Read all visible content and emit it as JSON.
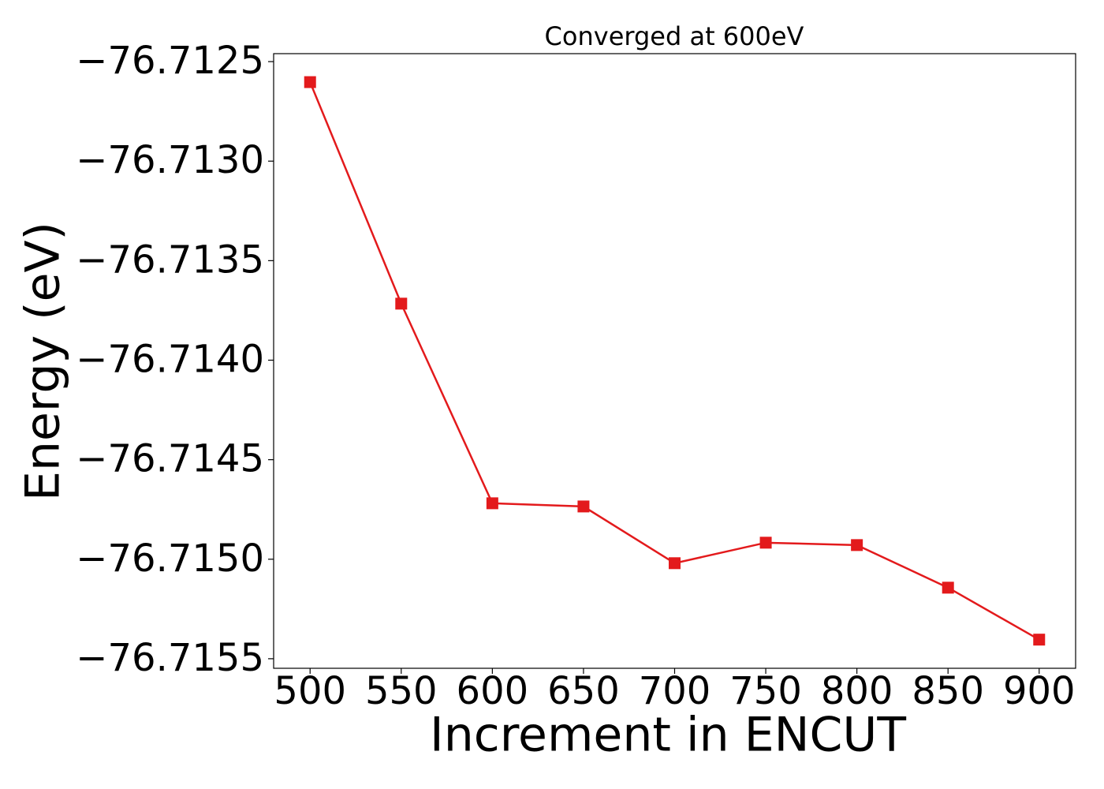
{
  "chart_data": {
    "type": "line",
    "title": "Converged at 600eV",
    "x_label": "Increment in ENCUT",
    "y_label": "Energy (eV)",
    "x": [
      500,
      550,
      600,
      650,
      700,
      750,
      800,
      850,
      900
    ],
    "series": [
      {
        "color": "#e31a1c",
        "values": [
          -76.712603,
          -76.713716,
          -76.714719,
          -76.714735,
          -76.71502,
          -76.714917,
          -76.714929,
          -76.715143,
          -76.715404
        ]
      }
    ],
    "xlim": [
      480,
      920
    ],
    "xticks": [
      500,
      550,
      600,
      650,
      700,
      750,
      800,
      850,
      900
    ],
    "ylim": [
      -76.715548,
      -76.71246
    ],
    "yticks": [
      {
        "value": -76.7125,
        "label": "−76.7125"
      },
      {
        "value": -76.713,
        "label": "−76.7130"
      },
      {
        "value": -76.7135,
        "label": "−76.7135"
      },
      {
        "value": -76.714,
        "label": "−76.7140"
      },
      {
        "value": -76.7145,
        "label": "−76.7145"
      },
      {
        "value": -76.715,
        "label": "−76.7150"
      },
      {
        "value": -76.7155,
        "label": "−76.7155"
      }
    ],
    "grid": false
  }
}
